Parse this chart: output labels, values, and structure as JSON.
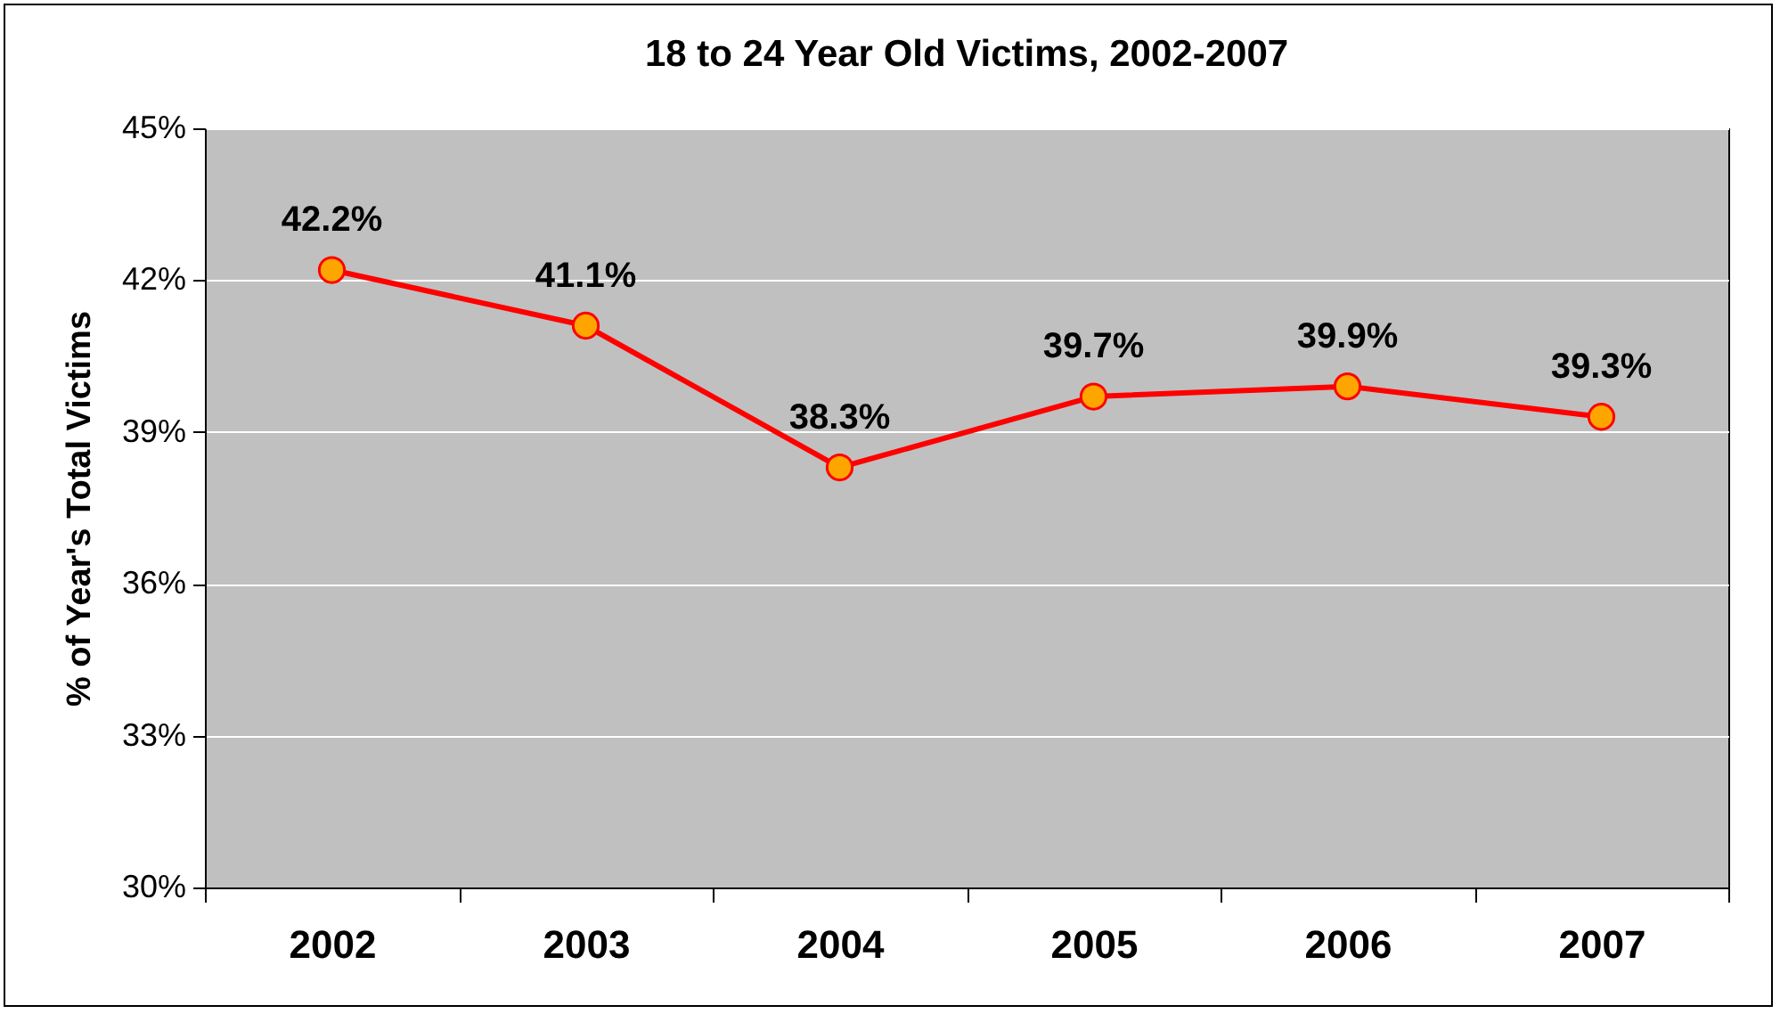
{
  "chart_data": {
    "type": "line",
    "title": "18 to 24 Year Old Victims, 2002-2007",
    "ylabel": "% of Year's Total Victims",
    "categories": [
      "2002",
      "2003",
      "2004",
      "2005",
      "2006",
      "2007"
    ],
    "series": [
      {
        "color": "#ff0000",
        "values": [
          42.2,
          41.1,
          38.3,
          39.7,
          39.9,
          39.3
        ],
        "value_labels": [
          "42.2%",
          "41.1%",
          "38.3%",
          "39.7%",
          "39.9%",
          "39.3%"
        ]
      }
    ],
    "ylim": [
      30,
      45
    ],
    "yticks": [
      {
        "value": 30,
        "label": "30%"
      },
      {
        "value": 33,
        "label": "33%"
      },
      {
        "value": 36,
        "label": "36%"
      },
      {
        "value": 39,
        "label": "39%"
      },
      {
        "value": 42,
        "label": "42%"
      },
      {
        "value": 45,
        "label": "45%"
      }
    ],
    "grid": "y",
    "marker": "circle",
    "line_style": "solid"
  }
}
